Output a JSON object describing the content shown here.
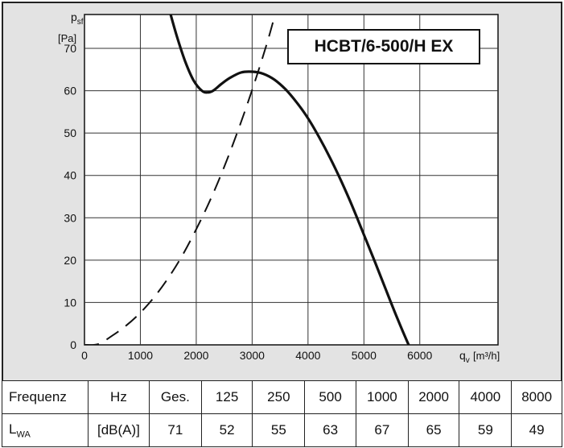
{
  "chart_data": {
    "type": "line",
    "title": "HCBT/6-500/H EX",
    "ylabel": "p",
    "ylabel_sub": "sf",
    "yunit": "[Pa]",
    "xlabel": "q",
    "xlabel_sub": "v",
    "xunit": "[m³/h]",
    "xlim": [
      0,
      7400
    ],
    "ylim": [
      0,
      78
    ],
    "xticks": [
      0,
      1000,
      2000,
      3000,
      4000,
      5000,
      6000
    ],
    "yticks": [
      0,
      10,
      20,
      30,
      40,
      50,
      60,
      70
    ],
    "grid": true,
    "series": [
      {
        "style": "solid",
        "x": [
          1500,
          1650,
          1800,
          1950,
          2100,
          2200,
          2300,
          2450,
          2600,
          2800,
          3000,
          3200,
          3400,
          3600,
          3800,
          4000,
          4200,
          4400,
          4600,
          4800,
          5000,
          5200,
          5400,
          5600,
          5800
        ],
        "y": [
          80,
          73,
          67,
          62.5,
          60,
          59.6,
          60,
          61.6,
          63,
          64.3,
          64.5,
          64,
          62.6,
          60.3,
          57.2,
          53.5,
          49,
          44,
          38.5,
          32.5,
          26,
          19.5,
          12.8,
          6.2,
          0
        ]
      },
      {
        "style": "dashed",
        "x": [
          0,
          250,
          500,
          750,
          1000,
          1250,
          1500,
          1750,
          2000,
          2250,
          2500,
          2750,
          3000,
          3250,
          3400
        ],
        "y": [
          0,
          0.2,
          2.2,
          4.6,
          7.6,
          11.3,
          15.8,
          21.1,
          27.3,
          34.2,
          42,
          50.7,
          60.2,
          70.5,
          77.5
        ]
      }
    ]
  },
  "table": {
    "rows": [
      {
        "label": "Frequenz",
        "unit": "Hz",
        "cells": [
          "Ges.",
          "125",
          "250",
          "500",
          "1000",
          "2000",
          "4000",
          "8000"
        ]
      },
      {
        "label_main": "L",
        "label_sub": "WA",
        "unit": "[dB(A)]",
        "cells": [
          "71",
          "52",
          "55",
          "63",
          "67",
          "65",
          "59",
          "49"
        ]
      }
    ]
  }
}
